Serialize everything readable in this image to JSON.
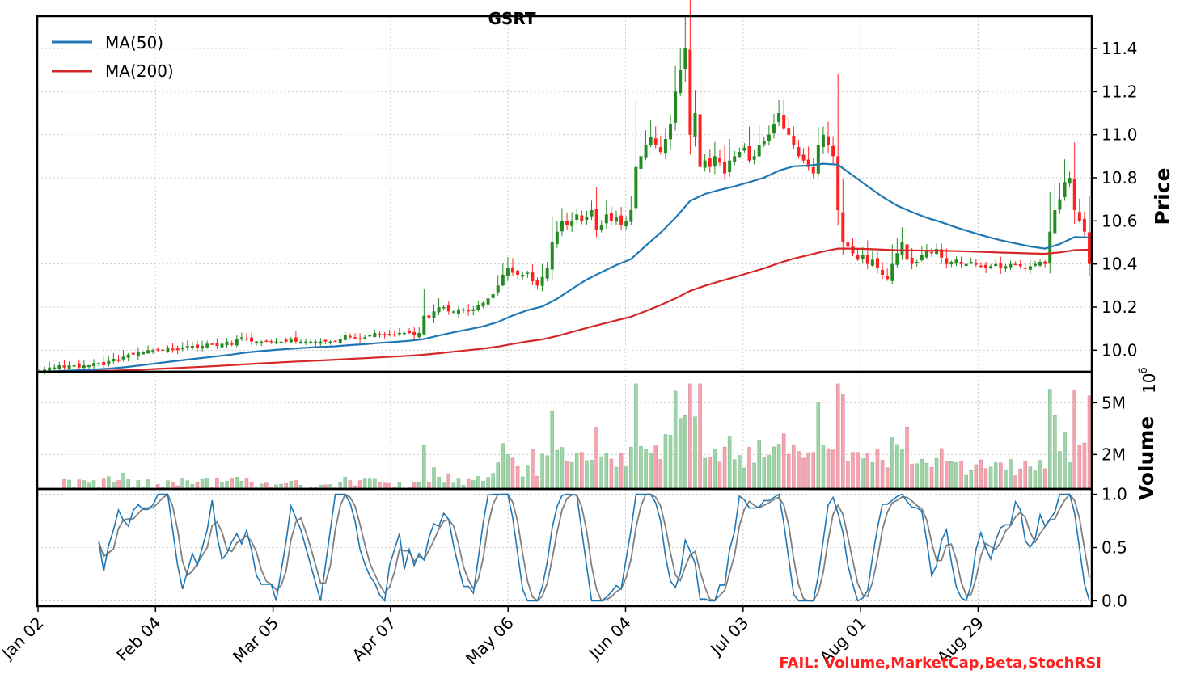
{
  "chart_data": {
    "type": "candlestick",
    "title": "GSRT",
    "x_tick_labels": [
      "Jan 02",
      "Feb 04",
      "Mar 05",
      "Apr 07",
      "May 06",
      "Jun 04",
      "Jul 03",
      "Aug 01",
      "Aug 29"
    ],
    "price_panel": {
      "ylabel": "Price",
      "ylim": [
        9.9,
        11.55
      ],
      "yticks": [
        10.0,
        10.2,
        10.4,
        10.6,
        10.8,
        11.0,
        11.2,
        11.4
      ],
      "ytick_labels": [
        "10.0",
        "10.2",
        "10.4",
        "10.6",
        "10.8",
        "11.0",
        "11.2",
        "11.4"
      ],
      "grid": true,
      "legend_position": "top-left",
      "legend": [
        {
          "name": "MA(50)",
          "color": "#1f77b4"
        },
        {
          "name": "MA(200)",
          "color": "#d62728"
        }
      ],
      "candle_colors": {
        "up": "#228b22",
        "down": "#ff2020"
      },
      "close_series_approx": [
        9.9,
        9.91,
        9.92,
        9.92,
        9.93,
        9.92,
        9.93,
        9.93,
        9.92,
        9.93,
        9.93,
        9.94,
        9.94,
        9.93,
        9.95,
        9.96,
        9.95,
        9.97,
        9.98,
        9.98,
        9.99,
        9.99,
        10.0,
        10.0,
        10.0,
        10.0,
        10.01,
        10.0,
        10.0,
        10.01,
        10.02,
        10.02,
        10.01,
        10.02,
        10.03,
        10.03,
        10.02,
        10.03,
        10.04,
        10.03,
        10.05,
        10.06,
        10.05,
        10.04,
        10.04,
        10.04,
        10.04,
        10.04,
        10.04,
        10.04,
        10.04,
        10.05,
        10.04,
        10.04,
        10.04,
        10.04,
        10.04,
        10.04,
        10.04,
        10.04,
        10.04,
        10.05,
        10.07,
        10.06,
        10.06,
        10.05,
        10.06,
        10.07,
        10.08,
        10.07,
        10.07,
        10.07,
        10.07,
        10.08,
        10.08,
        10.08,
        10.07,
        10.08,
        10.16,
        10.15,
        10.18,
        10.2,
        10.2,
        10.18,
        10.18,
        10.19,
        10.19,
        10.18,
        10.19,
        10.21,
        10.22,
        10.24,
        10.26,
        10.3,
        10.35,
        10.38,
        10.36,
        10.35,
        10.35,
        10.36,
        10.32,
        10.3,
        10.34,
        10.38,
        10.5,
        10.55,
        10.6,
        10.58,
        10.6,
        10.63,
        10.6,
        10.62,
        10.65,
        10.56,
        10.58,
        10.63,
        10.6,
        10.62,
        10.58,
        10.6,
        10.65,
        10.85,
        10.9,
        10.95,
        10.99,
        10.95,
        10.92,
        10.98,
        11.05,
        11.2,
        11.3,
        11.4,
        11.0,
        11.1,
        10.85,
        10.88,
        10.85,
        10.9,
        10.87,
        10.82,
        10.88,
        10.9,
        10.92,
        10.94,
        10.88,
        10.9,
        10.95,
        10.97,
        11.0,
        11.05,
        11.1,
        11.03,
        11.0,
        10.95,
        10.9,
        10.88,
        10.85,
        10.82,
        10.95,
        11.0,
        10.95,
        10.9,
        10.65,
        10.5,
        10.48,
        10.45,
        10.42,
        10.44,
        10.4,
        10.42,
        10.38,
        10.35,
        10.33,
        10.4,
        10.45,
        10.5,
        10.42,
        10.4,
        10.41,
        10.44,
        10.46,
        10.45,
        10.47,
        10.43,
        10.4,
        10.41,
        10.42,
        10.4,
        10.4,
        10.41,
        10.4,
        10.39,
        10.38,
        10.39,
        10.4,
        10.38,
        10.39,
        10.4,
        10.4,
        10.39,
        10.38,
        10.39,
        10.4,
        10.41,
        10.4,
        10.55,
        10.65,
        10.7,
        10.78,
        10.8,
        10.65,
        10.6,
        10.55,
        10.4
      ]
    },
    "volume_panel": {
      "ylabel": "Volume",
      "scale_label": "10",
      "scale_exponent": "6",
      "yticks": [
        2,
        5
      ],
      "ytick_labels": [
        "2M",
        "5M"
      ],
      "ylim": [
        0,
        6.8
      ],
      "grid": true
    },
    "stoch_rsi_panel": {
      "ylim": [
        -0.05,
        1.05
      ],
      "yticks": [
        0.0,
        0.5,
        1.0
      ],
      "ytick_labels": [
        "0.0",
        "0.5",
        "1.0"
      ],
      "grid": true,
      "k_line_color": "#1f77b4",
      "d_line_color": "#808080"
    },
    "annotations": [
      {
        "text": "FAIL: Volume,MarketCap,Beta,StochRSI",
        "color": "#ff2020",
        "position": "bottom-right"
      }
    ]
  }
}
